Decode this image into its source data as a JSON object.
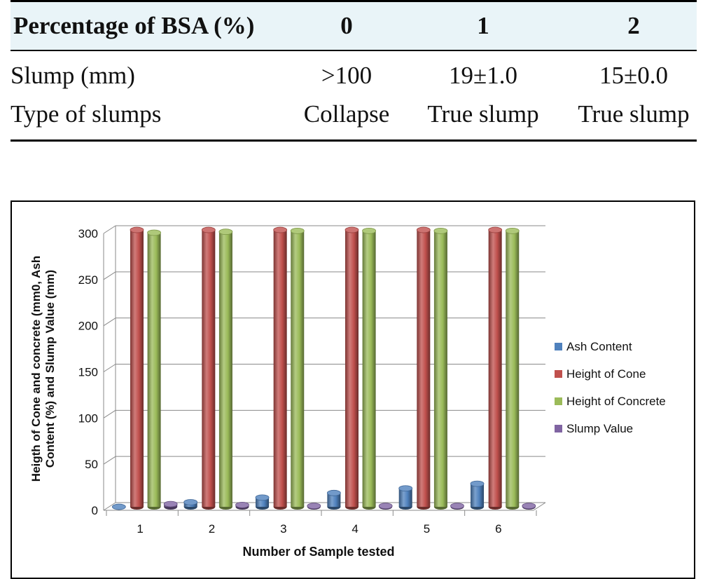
{
  "table": {
    "headers": [
      "Percentage of BSA (%)",
      "0",
      "1",
      "2"
    ],
    "rows": [
      [
        "Slump (mm)",
        ">100",
        "19±1.0",
        "15±0.0"
      ],
      [
        "Type of slumps",
        "Collapse",
        "True slump",
        "True slump"
      ]
    ]
  },
  "chart_data": {
    "type": "bar",
    "variant": "3d-cylinder",
    "title": "",
    "xlabel": "Number of Sample tested",
    "ylabel": "Heigth of Cone and concrete (mm0, Ash Content (%) and Slump Value (mm)",
    "ylabel_lines": [
      "Heigth of Cone and concrete (mm0, Ash",
      "Content (%) and Slump Value (mm)"
    ],
    "categories": [
      "1",
      "2",
      "3",
      "4",
      "5",
      "6"
    ],
    "ylim": [
      0,
      300
    ],
    "yticks": [
      0,
      50,
      100,
      150,
      200,
      250,
      300
    ],
    "grid": true,
    "legend_position": "right",
    "series": [
      {
        "name": "Ash Content",
        "color": "#4f81bd",
        "values": [
          0,
          5,
          10,
          15,
          20,
          25
        ]
      },
      {
        "name": "Height of Cone",
        "color": "#c0504d",
        "values": [
          300,
          300,
          300,
          300,
          300,
          300
        ]
      },
      {
        "name": "Height of Concrete",
        "color": "#9bbb59",
        "values": [
          297,
          298,
          299,
          299,
          299,
          299
        ]
      },
      {
        "name": "Slump Value",
        "color": "#8064a2",
        "values": [
          3,
          2,
          1,
          1,
          1,
          1
        ]
      }
    ]
  }
}
